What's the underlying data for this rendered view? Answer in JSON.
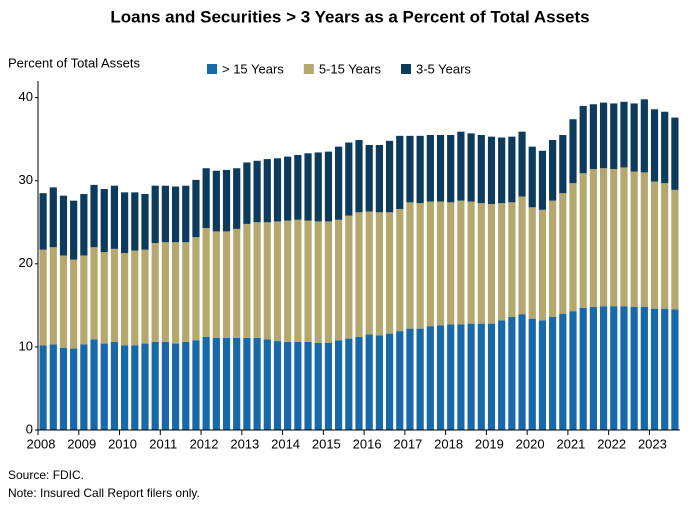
{
  "chart_data": {
    "type": "stacked_bar",
    "title": "Loans and Securities > 3 Years as a Percent of Total Assets",
    "y_label": "Percent of Total Assets",
    "source": "Source: FDIC.",
    "note": "Note: Insured Call Report filers only.",
    "categories": [
      "2008",
      null,
      null,
      null,
      "2009",
      null,
      null,
      null,
      "2010",
      null,
      null,
      null,
      "2011",
      null,
      null,
      null,
      "2012",
      null,
      null,
      null,
      "2013",
      null,
      null,
      null,
      "2014",
      null,
      null,
      null,
      "2015",
      null,
      null,
      null,
      "2016",
      null,
      null,
      null,
      "2017",
      null,
      null,
      null,
      "2018",
      null,
      null,
      null,
      "2019",
      null,
      null,
      null,
      "2020",
      null,
      null,
      null,
      "2021",
      null,
      null,
      null,
      "2022",
      null,
      null,
      null,
      "2023",
      null,
      null
    ],
    "series": [
      {
        "name": "> 15 Years",
        "color": "#1769aa",
        "values": [
          10.2,
          10.3,
          9.9,
          9.8,
          10.3,
          10.9,
          10.4,
          10.6,
          10.2,
          10.2,
          10.4,
          10.6,
          10.6,
          10.4,
          10.6,
          10.8,
          11.2,
          11.1,
          11.1,
          11.1,
          11.1,
          11.1,
          10.9,
          10.7,
          10.6,
          10.6,
          10.6,
          10.5,
          10.5,
          10.8,
          11.0,
          11.2,
          11.5,
          11.4,
          11.6,
          11.9,
          12.2,
          12.2,
          12.5,
          12.6,
          12.7,
          12.7,
          12.8,
          12.8,
          12.8,
          13.2,
          13.6,
          13.9,
          13.4,
          13.2,
          13.6,
          14.0,
          14.3,
          14.7,
          14.8,
          14.9,
          14.9,
          14.9,
          14.8,
          14.8,
          14.6,
          14.6,
          14.5
        ]
      },
      {
        "name": "5-15 Years",
        "color": "#b5a86e",
        "values": [
          11.5,
          11.7,
          11.1,
          10.7,
          10.7,
          11.1,
          11.0,
          11.2,
          11.1,
          11.4,
          11.3,
          11.9,
          12.0,
          12.2,
          12.0,
          12.4,
          13.1,
          12.8,
          12.8,
          13.1,
          13.7,
          13.9,
          14.1,
          14.4,
          14.6,
          14.7,
          14.6,
          14.6,
          14.6,
          14.5,
          14.8,
          15.0,
          14.8,
          14.8,
          14.6,
          14.7,
          15.2,
          15.1,
          15.0,
          14.9,
          14.7,
          14.9,
          14.7,
          14.5,
          14.4,
          14.1,
          13.8,
          14.2,
          13.4,
          13.3,
          14.0,
          14.5,
          15.4,
          16.2,
          16.6,
          16.6,
          16.5,
          16.7,
          16.3,
          16.2,
          15.3,
          15.1,
          14.4
        ]
      },
      {
        "name": "3-5 Years",
        "color": "#0d3b5e",
        "values": [
          6.8,
          7.2,
          7.2,
          7.1,
          7.4,
          7.5,
          7.6,
          7.6,
          7.3,
          7.0,
          6.7,
          6.9,
          6.8,
          6.7,
          6.8,
          6.9,
          7.2,
          7.3,
          7.4,
          7.3,
          7.4,
          7.4,
          7.6,
          7.6,
          7.7,
          7.8,
          8.1,
          8.3,
          8.4,
          8.8,
          8.8,
          8.7,
          8.0,
          8.1,
          8.6,
          8.8,
          8.0,
          8.1,
          8.0,
          8.0,
          8.1,
          8.3,
          8.2,
          8.2,
          8.1,
          7.9,
          7.9,
          7.8,
          7.3,
          7.1,
          7.3,
          7.0,
          7.7,
          8.1,
          7.8,
          7.9,
          7.9,
          7.9,
          8.2,
          8.8,
          8.7,
          8.6,
          8.7
        ]
      }
    ],
    "ylim": [
      0,
      42
    ],
    "yticks": [
      0,
      10,
      20,
      30,
      40
    ],
    "grid": false,
    "legend": "top"
  }
}
